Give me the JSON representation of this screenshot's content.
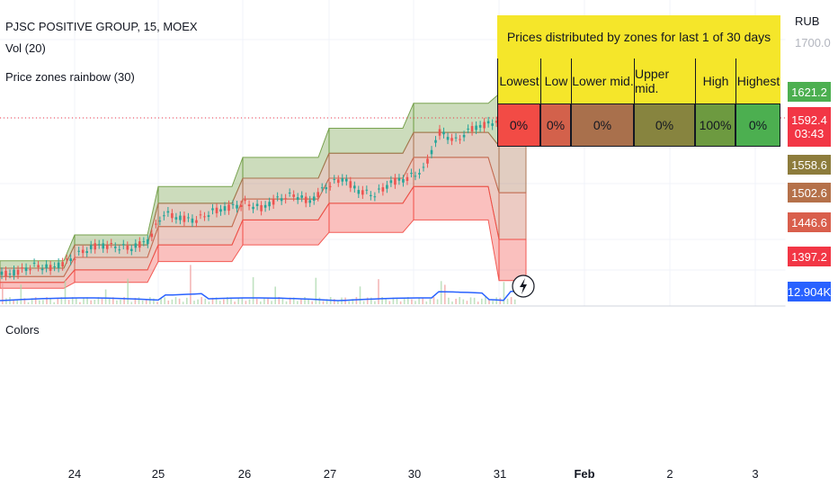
{
  "header": {
    "symbol_line": "PJSC POSITIVE GROUP, 15, MOEX",
    "indicator_vol": "Vol (20)",
    "indicator_zones": "Price zones rainbow (30)",
    "lower_pane_label": "Colors"
  },
  "price_axis": {
    "currency": "RUB",
    "top_tick": "1700.0",
    "tags": [
      {
        "value": "1621.2",
        "color": "#4caf50",
        "price": 1621.2
      },
      {
        "value": "1592.4",
        "color": "#f23645",
        "price": 1592.4,
        "sub": "03:43"
      },
      {
        "value": "1558.6",
        "color": "#8d7c3c",
        "price": 1558.6
      },
      {
        "value": "1502.6",
        "color": "#b5714a",
        "price": 1502.6
      },
      {
        "value": "1446.6",
        "color": "#d95f4c",
        "price": 1446.6
      },
      {
        "value": "1397.2",
        "color": "#f23645",
        "price": 1397.2
      },
      {
        "value": "12.904K",
        "color": "#2962ff",
        "price": null
      }
    ]
  },
  "zone_table": {
    "title": "Prices distributed by zones for last 1 of 30 days",
    "columns": [
      {
        "label": "Lowest",
        "value": "0%",
        "color": "#f24b45"
      },
      {
        "label": "Low",
        "value": "0%",
        "color": "#d3614b"
      },
      {
        "label": "Lower mid.",
        "value": "0%",
        "color": "#a9704c"
      },
      {
        "label": "Upper mid.",
        "value": "0%",
        "color": "#87843f"
      },
      {
        "label": "High",
        "value": "100%",
        "color": "#6d9a40"
      },
      {
        "label": "Highest",
        "value": "0%",
        "color": "#4caf50"
      }
    ],
    "header_color": "#f5e62a"
  },
  "chart_data": {
    "type": "line",
    "title": "PJSC POSITIVE GROUP, 15, MOEX",
    "x_ticks": [
      "24",
      "25",
      "26",
      "27",
      "30",
      "31",
      "Feb",
      "2",
      "3"
    ],
    "price_unit": "RUB",
    "last_price": 1592.4,
    "countdown": "03:43",
    "zone_levels_by_day": [
      {
        "day": "23-24",
        "top": 1421,
        "upper_mid": 1412,
        "lower_mid": 1402,
        "low": 1395,
        "bottom": 1388
      },
      {
        "day": "24",
        "top": 1452,
        "upper_mid": 1440,
        "lower_mid": 1425,
        "low": 1410,
        "bottom": 1395
      },
      {
        "day": "25",
        "top": 1510,
        "upper_mid": 1490,
        "lower_mid": 1462,
        "low": 1440,
        "bottom": 1420
      },
      {
        "day": "26",
        "top": 1545,
        "upper_mid": 1520,
        "lower_mid": 1495,
        "low": 1470,
        "bottom": 1440
      },
      {
        "day": "27",
        "top": 1580,
        "upper_mid": 1550,
        "lower_mid": 1520,
        "low": 1490,
        "bottom": 1455
      },
      {
        "day": "30",
        "top": 1610,
        "upper_mid": 1575,
        "lower_mid": 1545,
        "low": 1510,
        "bottom": 1470
      },
      {
        "day": "31",
        "top": 1621.2,
        "upper_mid": 1558.6,
        "lower_mid": 1502.6,
        "low": 1446.6,
        "bottom": 1397.2
      }
    ],
    "price_path": [
      1404,
      1408,
      1415,
      1412,
      1420,
      1432,
      1440,
      1438,
      1436,
      1445,
      1478,
      1472,
      1470,
      1480,
      1485,
      1490,
      1484,
      1495,
      1500,
      1492,
      1510,
      1520,
      1505,
      1500,
      1515,
      1520,
      1530,
      1575,
      1565,
      1580,
      1585,
      1592.4
    ],
    "volume_last": "12.904K"
  },
  "colors": {
    "highest": "#4caf50",
    "lowest": "#f23645",
    "volume_line": "#2962ff",
    "price_line": "#f23645"
  }
}
